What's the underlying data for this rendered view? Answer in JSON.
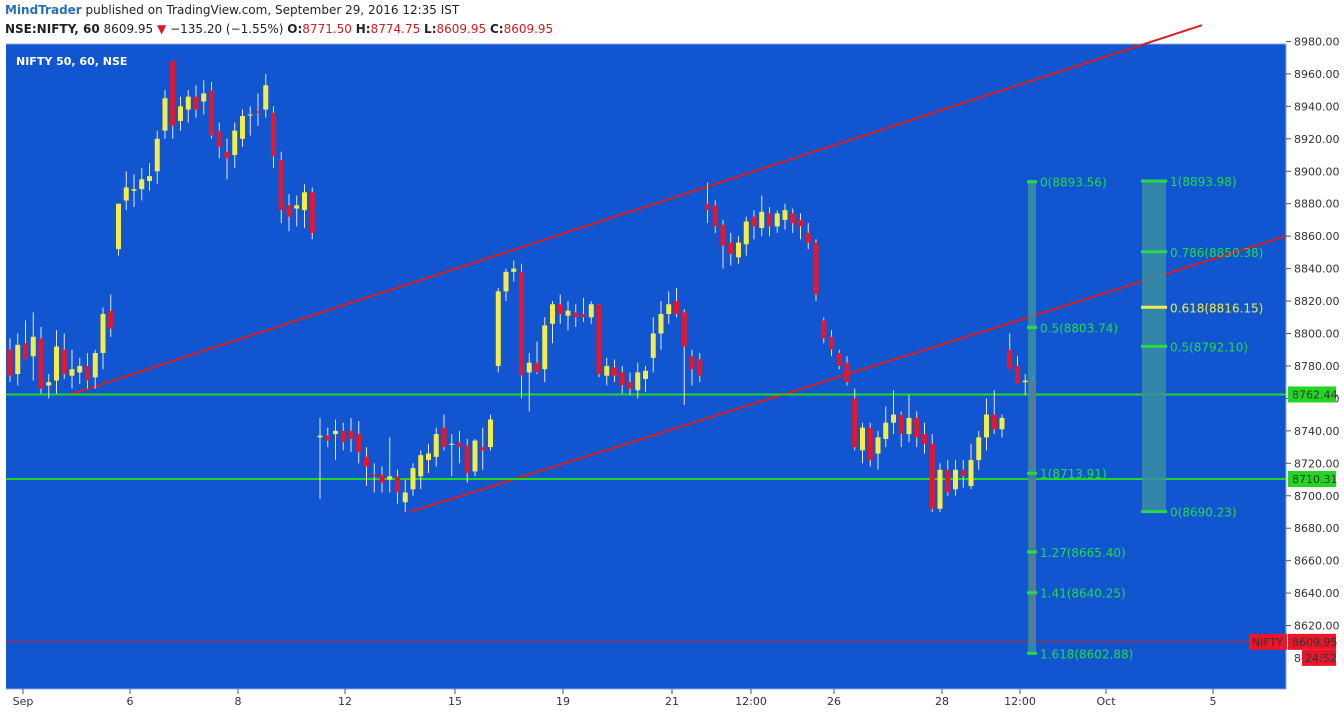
{
  "header": {
    "brand": "MindTrader",
    "published": "published on TradingView.com, September 29, 2016 12:35 IST",
    "symbol": "NSE:NIFTY, 60",
    "last": "8609.95",
    "arrow": "▼",
    "change": "−135.20 (−1.55%)",
    "o_label": "O:",
    "o_value": "8771.50",
    "h_label": "H:",
    "h_value": "8774.75",
    "l_label": "L:",
    "l_value": "8609.95",
    "c_label": "C:",
    "c_value": "8609.95"
  },
  "chart_title": "NIFTY 50, 60, NSE",
  "chart_data": {
    "type": "candlestick",
    "colors": {
      "background": "#1155d0",
      "up": "#f2ee47",
      "down": "#e8162b",
      "channel": "#d81e1e",
      "support": "#22d622",
      "fib": "#22dd44",
      "fib_mid": "#f2ee47",
      "price_tag": "#e8162b"
    },
    "y_range": [
      8590,
      8990
    ],
    "y_ticks": [
      "8980.00",
      "8960.00",
      "8940.00",
      "8920.00",
      "8900.00",
      "8880.00",
      "8860.00",
      "8840.00",
      "8820.00",
      "8800.00",
      "8780.00",
      "8760.00",
      "8740.00",
      "8720.00",
      "8700.00",
      "8680.00",
      "8660.00",
      "8640.00",
      "8620.00"
    ],
    "x_labels": [
      "Sep",
      "6",
      "8",
      "12",
      "15",
      "19",
      "21",
      "12:00",
      "26",
      "28",
      "12:00",
      "Oct",
      "5"
    ],
    "candles": [
      {
        "o": 8790,
        "h": 8797,
        "l": 8770,
        "c": 8774
      },
      {
        "o": 8775,
        "h": 8800,
        "l": 8768,
        "c": 8793
      },
      {
        "o": 8794,
        "h": 8808,
        "l": 8785,
        "c": 8784
      },
      {
        "o": 8786,
        "h": 8813,
        "l": 8771,
        "c": 8798
      },
      {
        "o": 8797,
        "h": 8804,
        "l": 8763,
        "c": 8766
      },
      {
        "o": 8768,
        "h": 8775,
        "l": 8760,
        "c": 8770
      },
      {
        "o": 8771,
        "h": 8802,
        "l": 8763,
        "c": 8792
      },
      {
        "o": 8790,
        "h": 8800,
        "l": 8772,
        "c": 8775
      },
      {
        "o": 8774,
        "h": 8790,
        "l": 8766,
        "c": 8778
      },
      {
        "o": 8776,
        "h": 8785,
        "l": 8769,
        "c": 8780
      },
      {
        "o": 8780,
        "h": 8788,
        "l": 8766,
        "c": 8771
      },
      {
        "o": 8773,
        "h": 8790,
        "l": 8766,
        "c": 8788
      },
      {
        "o": 8788,
        "h": 8816,
        "l": 8778,
        "c": 8812
      },
      {
        "o": 8814,
        "h": 8824,
        "l": 8798,
        "c": 8803
      },
      {
        "o": 8852,
        "h": 8880,
        "l": 8848,
        "c": 8880
      },
      {
        "o": 8882,
        "h": 8900,
        "l": 8876,
        "c": 8890
      },
      {
        "o": 8888,
        "h": 8898,
        "l": 8878,
        "c": 8889
      },
      {
        "o": 8889,
        "h": 8902,
        "l": 8882,
        "c": 8895
      },
      {
        "o": 8894,
        "h": 8905,
        "l": 8888,
        "c": 8897
      },
      {
        "o": 8900,
        "h": 8925,
        "l": 8892,
        "c": 8920
      },
      {
        "o": 8925,
        "h": 8950,
        "l": 8920,
        "c": 8945
      },
      {
        "o": 8968,
        "h": 8968,
        "l": 8920,
        "c": 8928
      },
      {
        "o": 8931,
        "h": 8946,
        "l": 8925,
        "c": 8940
      },
      {
        "o": 8938,
        "h": 8950,
        "l": 8930,
        "c": 8946
      },
      {
        "o": 8946,
        "h": 8953,
        "l": 8933,
        "c": 8938
      },
      {
        "o": 8943,
        "h": 8956,
        "l": 8935,
        "c": 8948
      },
      {
        "o": 8950,
        "h": 8955,
        "l": 8920,
        "c": 8922
      },
      {
        "o": 8925,
        "h": 8930,
        "l": 8908,
        "c": 8915
      },
      {
        "o": 8912,
        "h": 8920,
        "l": 8895,
        "c": 8908
      },
      {
        "o": 8910,
        "h": 8930,
        "l": 8902,
        "c": 8925
      },
      {
        "o": 8920,
        "h": 8938,
        "l": 8915,
        "c": 8934
      },
      {
        "o": 8935,
        "h": 8940,
        "l": 8922,
        "c": 8935
      },
      {
        "o": 8937,
        "h": 8948,
        "l": 8928,
        "c": 8936
      },
      {
        "o": 8938,
        "h": 8960,
        "l": 8933,
        "c": 8953
      },
      {
        "o": 8936,
        "h": 8940,
        "l": 8902,
        "c": 8909
      },
      {
        "o": 8907,
        "h": 8912,
        "l": 8868,
        "c": 8876
      },
      {
        "o": 8879,
        "h": 8886,
        "l": 8863,
        "c": 8872
      },
      {
        "o": 8877,
        "h": 8885,
        "l": 8866,
        "c": 8879
      },
      {
        "o": 8876,
        "h": 8892,
        "l": 8865,
        "c": 8887
      },
      {
        "o": 8887,
        "h": 8890,
        "l": 8858,
        "c": 8862
      },
      {
        "o": 8736,
        "h": 8748,
        "l": 8698,
        "c": 8737
      },
      {
        "o": 8737,
        "h": 8742,
        "l": 8730,
        "c": 8734
      },
      {
        "o": 8738,
        "h": 8747,
        "l": 8722,
        "c": 8740
      },
      {
        "o": 8740,
        "h": 8745,
        "l": 8728,
        "c": 8733
      },
      {
        "o": 8740,
        "h": 8748,
        "l": 8727,
        "c": 8735
      },
      {
        "o": 8738,
        "h": 8746,
        "l": 8720,
        "c": 8727
      },
      {
        "o": 8724,
        "h": 8730,
        "l": 8706,
        "c": 8718
      },
      {
        "o": 8713,
        "h": 8720,
        "l": 8702,
        "c": 8712
      },
      {
        "o": 8713,
        "h": 8718,
        "l": 8702,
        "c": 8708
      },
      {
        "o": 8710,
        "h": 8736,
        "l": 8702,
        "c": 8712
      },
      {
        "o": 8712,
        "h": 8716,
        "l": 8695,
        "c": 8702
      },
      {
        "o": 8696,
        "h": 8710,
        "l": 8690,
        "c": 8702
      },
      {
        "o": 8704,
        "h": 8720,
        "l": 8700,
        "c": 8717
      },
      {
        "o": 8712,
        "h": 8728,
        "l": 8704,
        "c": 8725
      },
      {
        "o": 8722,
        "h": 8732,
        "l": 8714,
        "c": 8726
      },
      {
        "o": 8724,
        "h": 8742,
        "l": 8718,
        "c": 8738
      },
      {
        "o": 8742,
        "h": 8750,
        "l": 8728,
        "c": 8730
      },
      {
        "o": 8732,
        "h": 8738,
        "l": 8712,
        "c": 8732
      },
      {
        "o": 8733,
        "h": 8740,
        "l": 8720,
        "c": 8730
      },
      {
        "o": 8731,
        "h": 8735,
        "l": 8708,
        "c": 8714
      },
      {
        "o": 8715,
        "h": 8735,
        "l": 8712,
        "c": 8734
      },
      {
        "o": 8730,
        "h": 8742,
        "l": 8716,
        "c": 8728
      },
      {
        "o": 8730,
        "h": 8750,
        "l": 8728,
        "c": 8747
      },
      {
        "o": 8780,
        "h": 8828,
        "l": 8776,
        "c": 8826
      },
      {
        "o": 8826,
        "h": 8840,
        "l": 8820,
        "c": 8838
      },
      {
        "o": 8838,
        "h": 8845,
        "l": 8832,
        "c": 8840
      },
      {
        "o": 8838,
        "h": 8843,
        "l": 8760,
        "c": 8774
      },
      {
        "o": 8776,
        "h": 8788,
        "l": 8752,
        "c": 8782
      },
      {
        "o": 8782,
        "h": 8795,
        "l": 8775,
        "c": 8776
      },
      {
        "o": 8778,
        "h": 8810,
        "l": 8770,
        "c": 8805
      },
      {
        "o": 8806,
        "h": 8820,
        "l": 8794,
        "c": 8818
      },
      {
        "o": 8818,
        "h": 8824,
        "l": 8806,
        "c": 8812
      },
      {
        "o": 8811,
        "h": 8820,
        "l": 8802,
        "c": 8814
      },
      {
        "o": 8813,
        "h": 8818,
        "l": 8804,
        "c": 8810
      },
      {
        "o": 8812,
        "h": 8822,
        "l": 8807,
        "c": 8810
      },
      {
        "o": 8810,
        "h": 8820,
        "l": 8806,
        "c": 8818
      },
      {
        "o": 8818,
        "h": 8818,
        "l": 8773,
        "c": 8775
      },
      {
        "o": 8774,
        "h": 8785,
        "l": 8768,
        "c": 8780
      },
      {
        "o": 8779,
        "h": 8784,
        "l": 8770,
        "c": 8774
      },
      {
        "o": 8776,
        "h": 8780,
        "l": 8763,
        "c": 8768
      },
      {
        "o": 8770,
        "h": 8776,
        "l": 8762,
        "c": 8766
      },
      {
        "o": 8765,
        "h": 8782,
        "l": 8760,
        "c": 8776
      },
      {
        "o": 8772,
        "h": 8780,
        "l": 8764,
        "c": 8777
      },
      {
        "o": 8785,
        "h": 8810,
        "l": 8776,
        "c": 8800
      },
      {
        "o": 8800,
        "h": 8820,
        "l": 8790,
        "c": 8812
      },
      {
        "o": 8812,
        "h": 8826,
        "l": 8806,
        "c": 8818
      },
      {
        "o": 8820,
        "h": 8828,
        "l": 8810,
        "c": 8812
      },
      {
        "o": 8813,
        "h": 8815,
        "l": 8756,
        "c": 8792
      },
      {
        "o": 8786,
        "h": 8790,
        "l": 8768,
        "c": 8778
      },
      {
        "o": 8784,
        "h": 8788,
        "l": 8770,
        "c": 8774
      },
      {
        "o": 8880,
        "h": 8893,
        "l": 8868,
        "c": 8876
      },
      {
        "o": 8879,
        "h": 8882,
        "l": 8862,
        "c": 8866
      },
      {
        "o": 8867,
        "h": 8870,
        "l": 8840,
        "c": 8854
      },
      {
        "o": 8856,
        "h": 8862,
        "l": 8842,
        "c": 8849
      },
      {
        "o": 8847,
        "h": 8860,
        "l": 8843,
        "c": 8856
      },
      {
        "o": 8855,
        "h": 8872,
        "l": 8848,
        "c": 8869
      },
      {
        "o": 8872,
        "h": 8876,
        "l": 8858,
        "c": 8866
      },
      {
        "o": 8865,
        "h": 8885,
        "l": 8860,
        "c": 8875
      },
      {
        "o": 8874,
        "h": 8878,
        "l": 8860,
        "c": 8866
      },
      {
        "o": 8866,
        "h": 8876,
        "l": 8862,
        "c": 8874
      },
      {
        "o": 8870,
        "h": 8880,
        "l": 8864,
        "c": 8876
      },
      {
        "o": 8874,
        "h": 8877,
        "l": 8862,
        "c": 8868
      },
      {
        "o": 8870,
        "h": 8874,
        "l": 8858,
        "c": 8866
      },
      {
        "o": 8862,
        "h": 8868,
        "l": 8852,
        "c": 8856
      },
      {
        "o": 8856,
        "h": 8858,
        "l": 8820,
        "c": 8824
      },
      {
        "o": 8808,
        "h": 8810,
        "l": 8794,
        "c": 8797
      },
      {
        "o": 8798,
        "h": 8802,
        "l": 8786,
        "c": 8790
      },
      {
        "o": 8788,
        "h": 8790,
        "l": 8778,
        "c": 8780
      },
      {
        "o": 8782,
        "h": 8786,
        "l": 8768,
        "c": 8770
      },
      {
        "o": 8760,
        "h": 8766,
        "l": 8728,
        "c": 8730
      },
      {
        "o": 8728,
        "h": 8745,
        "l": 8720,
        "c": 8742
      },
      {
        "o": 8742,
        "h": 8745,
        "l": 8718,
        "c": 8722
      },
      {
        "o": 8726,
        "h": 8740,
        "l": 8716,
        "c": 8736
      },
      {
        "o": 8735,
        "h": 8755,
        "l": 8730,
        "c": 8745
      },
      {
        "o": 8745,
        "h": 8765,
        "l": 8738,
        "c": 8750
      },
      {
        "o": 8750,
        "h": 8752,
        "l": 8730,
        "c": 8738
      },
      {
        "o": 8738,
        "h": 8762,
        "l": 8733,
        "c": 8748
      },
      {
        "o": 8748,
        "h": 8752,
        "l": 8730,
        "c": 8736
      },
      {
        "o": 8738,
        "h": 8745,
        "l": 8726,
        "c": 8732
      },
      {
        "o": 8732,
        "h": 8738,
        "l": 8690,
        "c": 8692
      },
      {
        "o": 8692,
        "h": 8720,
        "l": 8690,
        "c": 8716
      },
      {
        "o": 8716,
        "h": 8722,
        "l": 8700,
        "c": 8702
      },
      {
        "o": 8704,
        "h": 8722,
        "l": 8700,
        "c": 8716
      },
      {
        "o": 8716,
        "h": 8722,
        "l": 8705,
        "c": 8712
      },
      {
        "o": 8706,
        "h": 8732,
        "l": 8704,
        "c": 8722
      },
      {
        "o": 8722,
        "h": 8740,
        "l": 8716,
        "c": 8736
      },
      {
        "o": 8736,
        "h": 8760,
        "l": 8728,
        "c": 8750
      },
      {
        "o": 8750,
        "h": 8765,
        "l": 8738,
        "c": 8741
      },
      {
        "o": 8741,
        "h": 8750,
        "l": 8736,
        "c": 8748
      },
      {
        "o": 8790,
        "h": 8800,
        "l": 8778,
        "c": 8778
      },
      {
        "o": 8780,
        "h": 8786,
        "l": 8770,
        "c": 8769
      },
      {
        "o": 8770,
        "h": 8775,
        "l": 8762,
        "c": 8771
      },
      {
        "o": 8771.5,
        "h": 8774.75,
        "l": 8609.95,
        "c": 8609.95
      }
    ],
    "lines": {
      "channel_upper": {
        "from": [
          0,
          8762
        ],
        "to": [
          188,
          8990
        ]
      },
      "channel_lower": {
        "from": [
          34,
          8690
        ],
        "to": [
          150,
          8860
        ]
      },
      "support": [
        8762.44,
        8710.31
      ],
      "last_price": 8609.95
    },
    "fib_extension": {
      "levels": [
        {
          "label": "0(8893.56)",
          "value": 8893.56
        },
        {
          "label": "0.5(8803.74)",
          "value": 8803.74
        },
        {
          "label": "1(8713.91)",
          "value": 8713.91
        },
        {
          "label": "1.27(8665.40)",
          "value": 8665.4
        },
        {
          "label": "1.41(8640.25)",
          "value": 8640.25
        },
        {
          "label": "1.618(8602.88)",
          "value": 8602.88
        }
      ]
    },
    "fib_retracement": {
      "levels": [
        {
          "label": "1(8893.98)",
          "value": 8893.98
        },
        {
          "label": "0.786(8850.38)",
          "value": 8850.38
        },
        {
          "label": "0.618(8816.15)",
          "value": 8816.15
        },
        {
          "label": "0.5(8792.10)",
          "value": 8792.1
        },
        {
          "label": "0(8690.23)",
          "value": 8690.23
        }
      ]
    },
    "right_tags": {
      "support_hi": "8762.44",
      "support_lo": "8710.31",
      "symbol": "NIFTY",
      "price": "8609.95",
      "countdown": "24:52",
      "partial_tick": "86"
    }
  }
}
